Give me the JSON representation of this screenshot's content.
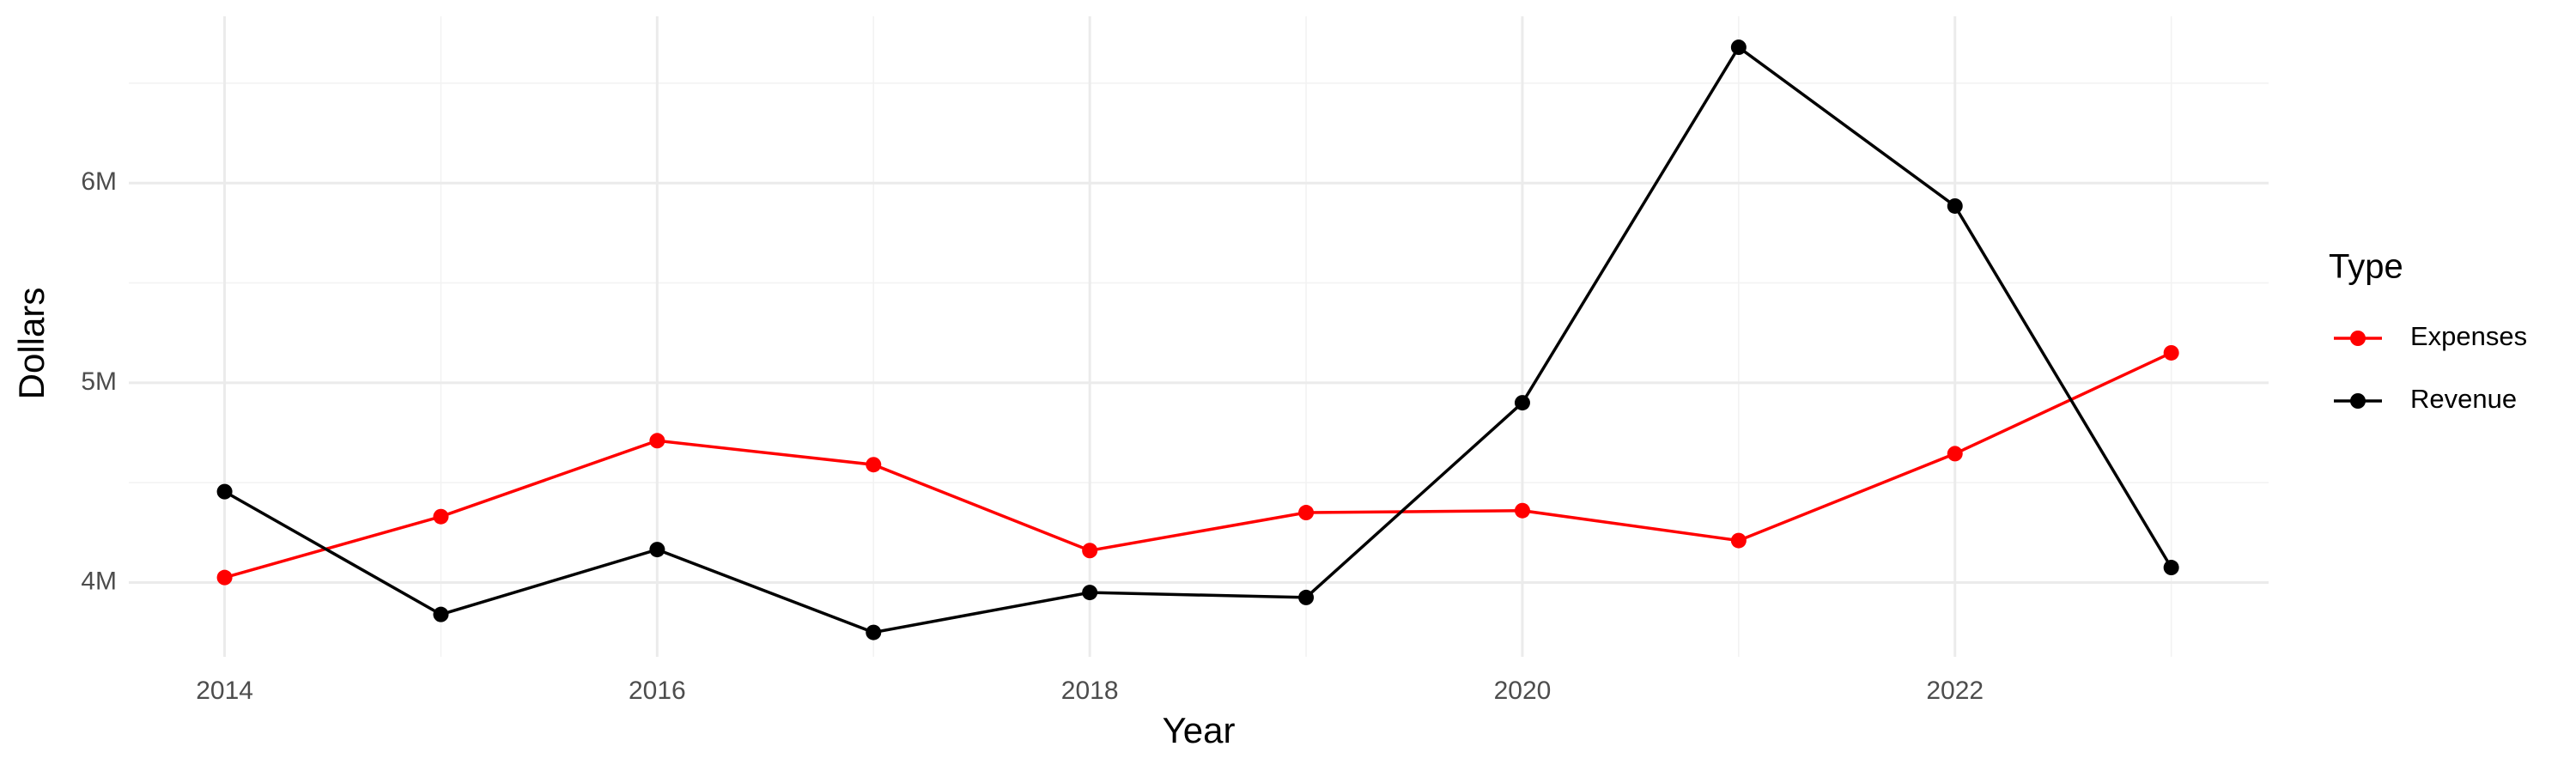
{
  "chart_data": {
    "type": "line",
    "x_label": "Year",
    "y_label": "Dollars",
    "legend_title": "Type",
    "x": [
      2014,
      2015,
      2016,
      2017,
      2018,
      2019,
      2020,
      2021,
      2022,
      2023
    ],
    "series": [
      {
        "name": "Expenses",
        "color": "#ff0000",
        "values": [
          4025000,
          4330000,
          4710000,
          4590000,
          4160000,
          4350000,
          4360000,
          4210000,
          4645000,
          5150000
        ]
      },
      {
        "name": "Revenue",
        "color": "#000000",
        "values": [
          4455000,
          3840000,
          4165000,
          3750000,
          3950000,
          3925000,
          4900000,
          6680000,
          5885000,
          4075000
        ]
      }
    ],
    "xlim": [
      2013.557,
      2023.45
    ],
    "xticks": [
      2014,
      2016,
      2018,
      2020,
      2022
    ],
    "ylim": [
      3628000,
      6835000
    ],
    "yticks": [
      {
        "value": 4000000,
        "label": "4M"
      },
      {
        "value": 5000000,
        "label": "5M"
      },
      {
        "value": 6000000,
        "label": "6M"
      }
    ],
    "grid": true,
    "legend": "right"
  }
}
